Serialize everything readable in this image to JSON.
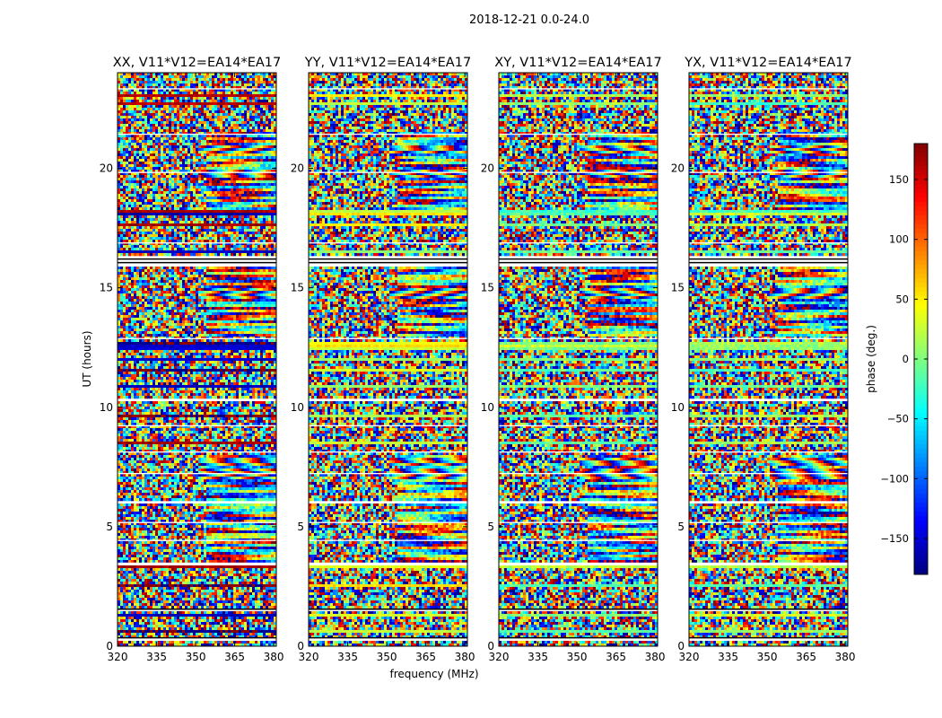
{
  "chart_data": {
    "type": "heatmap",
    "suptitle": "2018-12-21 0.0-24.0",
    "xlabel": "frequency (MHz)",
    "ylabel": "UT (hours)",
    "xlim": [
      320,
      381
    ],
    "xticks": [
      320,
      335,
      350,
      365,
      380
    ],
    "ylim": [
      0,
      24
    ],
    "yticks": [
      0,
      5,
      10,
      15,
      20
    ],
    "panels": [
      {
        "title": "XX, V11*V12=EA14*EA17",
        "bias": 185,
        "strength": 0.45
      },
      {
        "title": "YY, V11*V12=EA14*EA17",
        "bias": 30,
        "strength": 0.5
      },
      {
        "title": "XY, V11*V12=EA14*EA17",
        "bias": 0,
        "strength": 0.0
      },
      {
        "title": "YX, V11*V12=EA14*EA17",
        "bias": 0,
        "strength": 0.0
      }
    ],
    "colorbar": {
      "label": "phase (deg.)",
      "range": [
        -180,
        180
      ],
      "ticks": [
        150,
        100,
        50,
        0,
        -50,
        -100,
        -150
      ],
      "tick_labels": [
        "150",
        "100",
        "50",
        "0",
        "−50",
        "−100",
        "−150"
      ],
      "colormap": "jet"
    },
    "flagged_time_bands": [
      [
        0.55,
        0.65
      ],
      [
        1.2,
        1.3
      ],
      [
        1.45,
        1.6
      ],
      [
        2.5,
        2.6
      ],
      [
        3.3,
        3.5
      ],
      [
        8.5,
        8.6
      ],
      [
        9.6,
        9.7
      ],
      [
        10.8,
        10.9
      ],
      [
        11.5,
        11.6
      ],
      [
        12.0,
        12.1
      ],
      [
        12.4,
        12.75
      ],
      [
        16.5,
        16.6
      ],
      [
        17.6,
        17.7
      ],
      [
        18.0,
        18.2
      ],
      [
        22.6,
        22.75
      ],
      [
        23.0,
        23.1
      ]
    ],
    "gap_time_bands": [
      [
        0.28,
        0.35
      ],
      [
        1.5,
        1.55
      ],
      [
        3.4,
        3.5
      ],
      [
        4.4,
        4.45
      ],
      [
        5.15,
        5.2
      ],
      [
        6.0,
        6.05
      ],
      [
        7.2,
        7.25
      ],
      [
        8.1,
        8.15
      ],
      [
        9.2,
        9.25
      ],
      [
        10.3,
        10.35
      ],
      [
        12.85,
        12.9
      ],
      [
        15.9,
        16.3
      ],
      [
        16.85,
        16.9
      ],
      [
        19.8,
        19.85
      ],
      [
        21.4,
        21.45
      ],
      [
        23.3,
        23.35
      ]
    ],
    "fringe_bands": [
      [
        7.0,
        7.4
      ],
      [
        7.6,
        7.9
      ],
      [
        14.5,
        15.0
      ],
      [
        19.6,
        20.0
      ],
      [
        20.6,
        21.0
      ]
    ],
    "structured_bands": [
      [
        13.0,
        16.0
      ],
      [
        18.2,
        21.5
      ],
      [
        3.5,
        8.0
      ]
    ]
  }
}
